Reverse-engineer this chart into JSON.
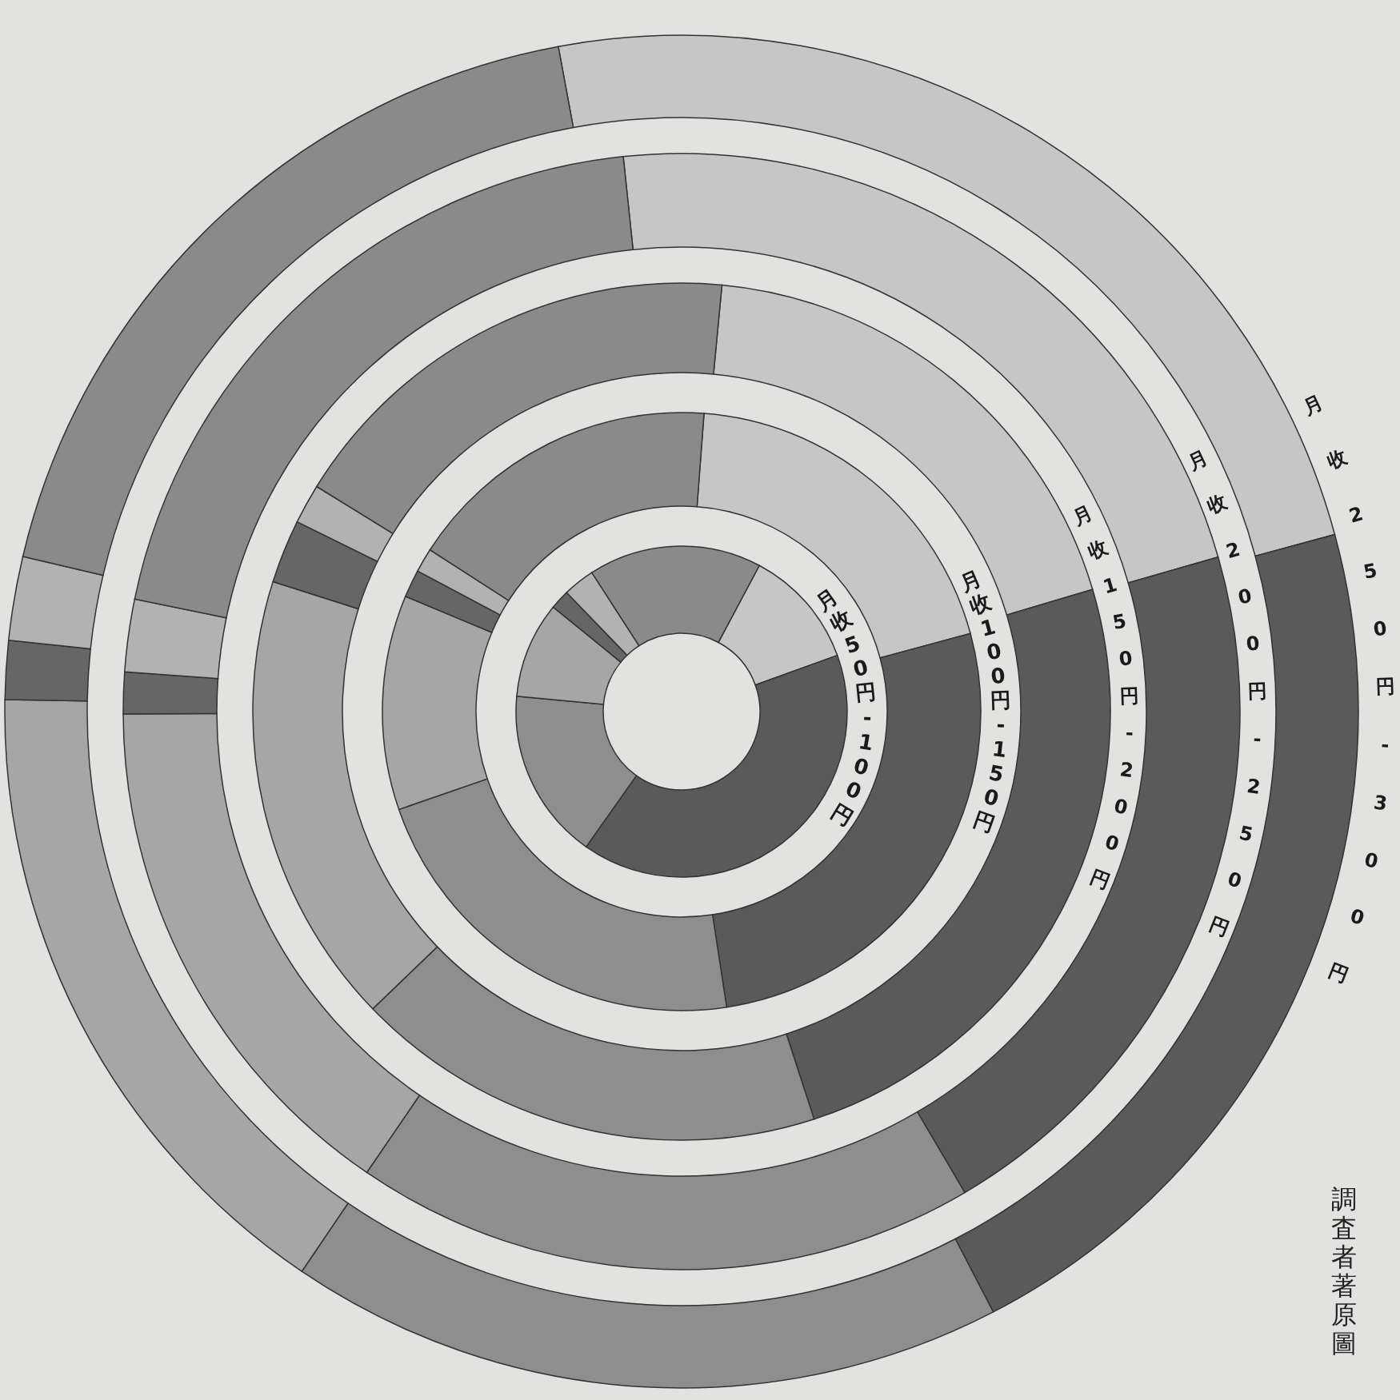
{
  "chart_data": [
    {
      "type": "donut",
      "title": "月收50円-100円",
      "categories": [
        null,
        null,
        null,
        null,
        null,
        null,
        null
      ],
      "values": [
        11.7,
        40.3,
        16.7,
        9.4,
        1.9,
        3.1,
        16.9
      ],
      "colors": [
        "#c6c6c6",
        "#5a5a5a",
        "#8e8e8e",
        "#a6a6a6",
        "#666666",
        "#b2b2b2",
        "#8a8a8a"
      ],
      "annotations": [
        "調査者著原圖"
      ]
    },
    {
      "type": "donut",
      "title": "月收100円-150円",
      "categories": [
        null,
        null,
        null,
        null,
        null,
        null,
        null
      ],
      "values": [
        19.6,
        26.8,
        22.1,
        11.6,
        1.5,
        1.3,
        17.1
      ],
      "colors": [
        "#c6c6c6",
        "#5a5a5a",
        "#8e8e8e",
        "#a6a6a6",
        "#666666",
        "#b2b2b2",
        "#8a8a8a"
      ]
    },
    {
      "type": "donut",
      "title": "月收150円-200円",
      "categories": [
        null,
        null,
        null,
        null,
        null,
        null,
        null
      ],
      "values": [
        18.9,
        24.6,
        17.8,
        17.1,
        2.4,
        1.5,
        17.7
      ],
      "colors": [
        "#c6c6c6",
        "#5a5a5a",
        "#8e8e8e",
        "#a6a6a6",
        "#666666",
        "#b2b2b2",
        "#8a8a8a"
      ]
    },
    {
      "type": "donut",
      "title": "月收200円-250円",
      "categories": [
        null,
        null,
        null,
        null,
        null,
        null,
        null
      ],
      "values": [
        22.2,
        21.0,
        18.0,
        15.4,
        1.2,
        2.1,
        20.1
      ],
      "colors": [
        "#c6c6c6",
        "#5a5a5a",
        "#8e8e8e",
        "#a6a6a6",
        "#666666",
        "#b2b2b2",
        "#8a8a8a"
      ]
    },
    {
      "type": "donut",
      "title": "月收250円-300円",
      "categories": [
        null,
        null,
        null,
        null,
        null,
        null,
        null
      ],
      "values": [
        23.7,
        21.6,
        17.1,
        15.8,
        1.4,
        2.0,
        18.4
      ],
      "colors": [
        "#c6c6c6",
        "#5a5a5a",
        "#8e8e8e",
        "#a6a6a6",
        "#666666",
        "#b2b2b2",
        "#8a8a8a"
      ]
    }
  ]
}
